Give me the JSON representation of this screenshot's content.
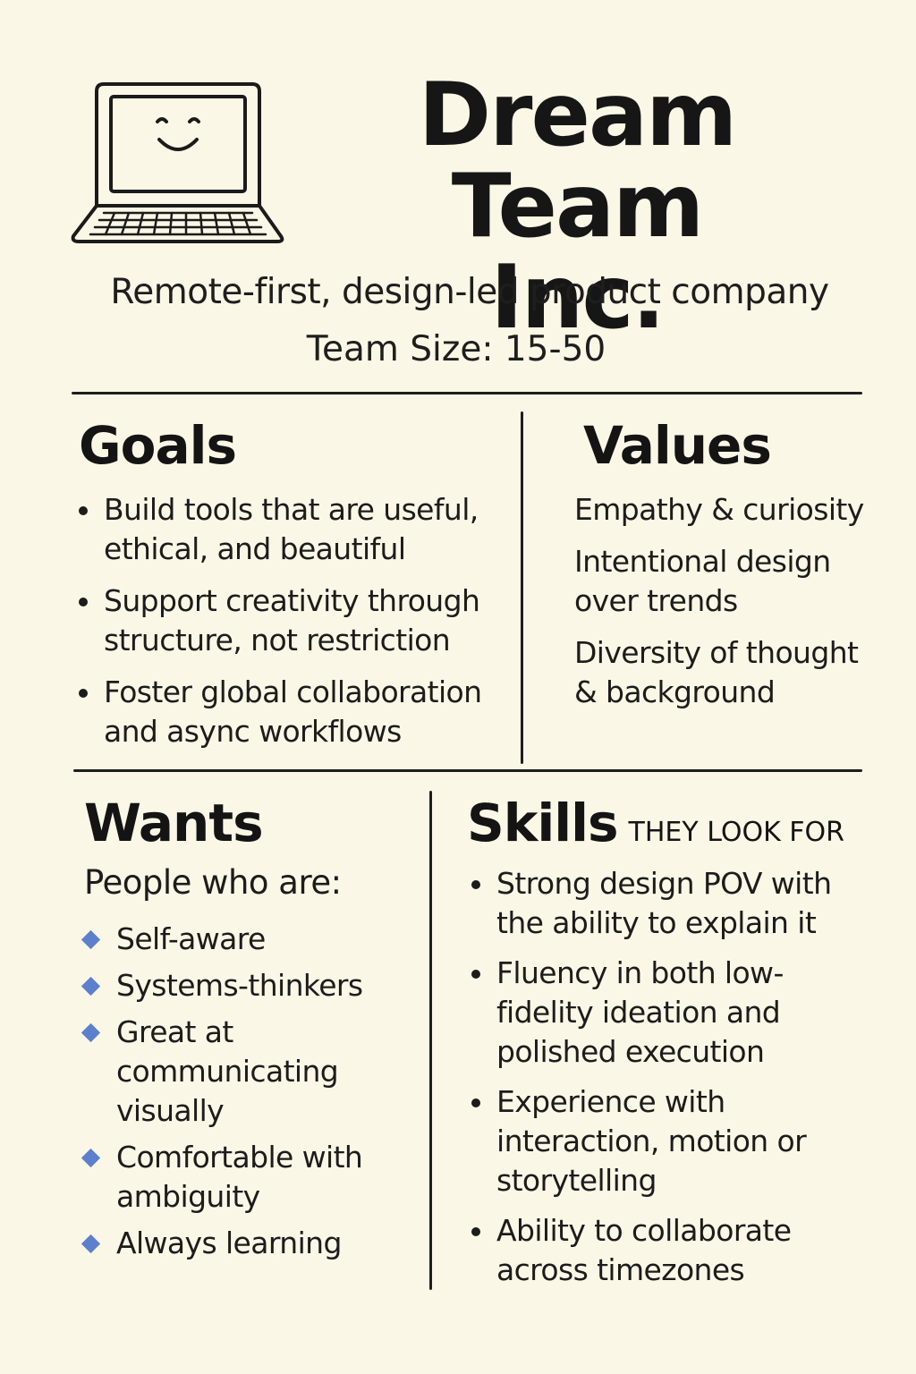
{
  "header": {
    "logo_icon": "smiling-laptop-icon",
    "title_line1": "Dream Team",
    "title_line2": "Inc.",
    "tagline": "Remote-first, design-led product company",
    "team_size": "Team Size: 15-50"
  },
  "goals": {
    "title": "Goals",
    "items": [
      "Build tools that are useful, ethical, and beautiful",
      "Support creativity through structure, not restriction",
      "Foster global collaboration and async workflows"
    ]
  },
  "values": {
    "title": "Values",
    "items": [
      "Empathy & curiosity",
      "Intentional design over trends",
      "Diversity of thought & background"
    ]
  },
  "wants": {
    "title": "Wants",
    "intro": "People who are:",
    "items": [
      "Self-aware",
      "Systems-thinkers",
      "Great at communicating visually",
      "Comfortable with ambiguity",
      "Always learning"
    ],
    "bullet_color": "#5c7fce"
  },
  "skills": {
    "title": "Skills",
    "subtitle": "they look for",
    "items": [
      "Strong design POV with the ability to explain it",
      "Fluency in both low-fidelity ideation and polished execution",
      "Experience with interaction, motion or storytelling",
      "Ability to collaborate across timezones"
    ]
  },
  "colors": {
    "background": "#fbf7e6",
    "ink": "#1b1b1b",
    "accent": "#5c7fce"
  }
}
